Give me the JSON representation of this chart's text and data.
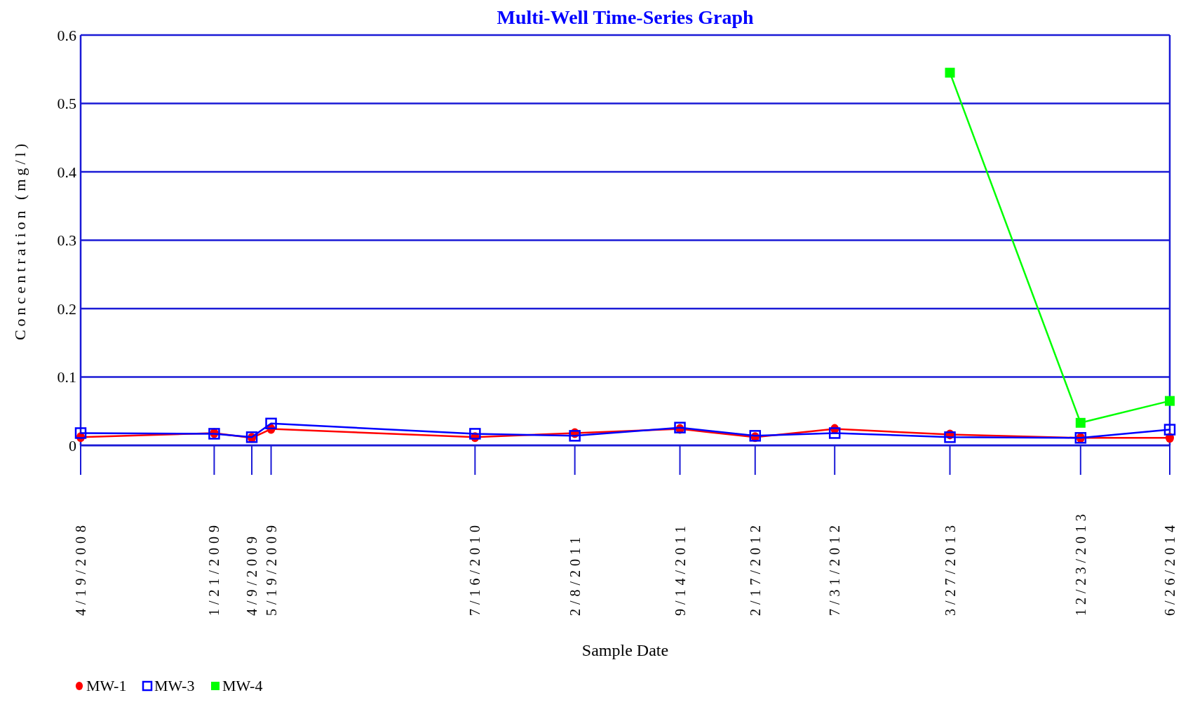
{
  "chart_data": {
    "type": "line",
    "title": "Multi-Well Time-Series Graph",
    "xlabel": "Sample Date",
    "ylabel": "Concentration (mg/l)",
    "x": [
      "2008-04-19",
      "2009-01-21",
      "2009-04-09",
      "2009-05-19",
      "2010-07-16",
      "2011-02-08",
      "2011-09-14",
      "2012-02-17",
      "2012-07-31",
      "2013-03-27",
      "2013-12-23",
      "2014-06-26"
    ],
    "series": [
      {
        "name": "MW-1",
        "color": "#ff0000",
        "marker": "circle",
        "values": [
          0.012,
          0.018,
          0.011,
          0.024,
          0.012,
          0.018,
          0.024,
          0.012,
          0.024,
          0.016,
          0.011,
          0.011
        ]
      },
      {
        "name": "MW-3",
        "color": "#0000ff",
        "marker": "square",
        "values": [
          0.018,
          0.017,
          0.012,
          0.032,
          0.017,
          0.014,
          0.026,
          0.014,
          0.018,
          0.012,
          0.011,
          0.023
        ]
      },
      {
        "name": "MW-4",
        "color": "#00ff00",
        "marker": "square",
        "values": [
          null,
          null,
          null,
          null,
          null,
          null,
          null,
          null,
          null,
          0.545,
          0.033,
          0.065
        ]
      }
    ],
    "xlim": [
      "2008-04-19",
      "2014-06-26"
    ],
    "xticks": [
      {
        "value": "2008-04-19",
        "label": "4/19/2008"
      },
      {
        "value": "2009-01-21",
        "label": "1/21/2009"
      },
      {
        "value": "2009-04-09",
        "label": "4/9/2009"
      },
      {
        "value": "2009-05-19",
        "label": "5/19/2009"
      },
      {
        "value": "2010-07-16",
        "label": "7/16/2010"
      },
      {
        "value": "2011-02-08",
        "label": "2/8/2011"
      },
      {
        "value": "2011-09-14",
        "label": "9/14/2011"
      },
      {
        "value": "2012-02-17",
        "label": "2/17/2012"
      },
      {
        "value": "2012-07-31",
        "label": "7/31/2012"
      },
      {
        "value": "2013-03-27",
        "label": "3/27/2013"
      },
      {
        "value": "2013-12-23",
        "label": "12/23/2013"
      },
      {
        "value": "2014-06-26",
        "label": "6/26/2014"
      }
    ],
    "ylim": [
      0,
      0.6
    ],
    "yticks": [
      0,
      0.1,
      0.2,
      0.3,
      0.4,
      0.5,
      0.6
    ],
    "grid": "y",
    "legend": "bottom left"
  }
}
